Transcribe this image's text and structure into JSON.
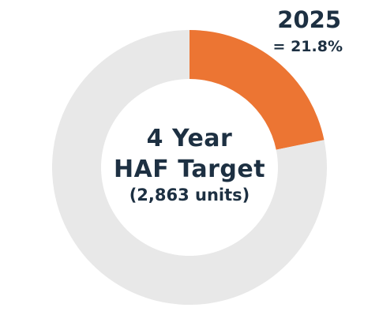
{
  "center": {
    "line1": "4 Year",
    "line2": "HAF Target",
    "line3": "(2,863 units)"
  },
  "callout": {
    "year": "2025",
    "value": "= 21.8%"
  },
  "colors": {
    "highlight": "#ec7533",
    "remainder": "#e8e8e8",
    "text": "#1d3042"
  },
  "chart_data": {
    "type": "pie",
    "style": "donut",
    "categories": [
      "2025",
      ""
    ],
    "values": [
      21.8,
      78.2
    ],
    "unit": "%",
    "total_label": "(2,863 units)"
  }
}
